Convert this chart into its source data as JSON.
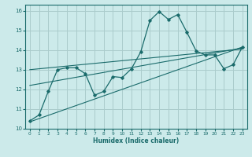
{
  "xlabel": "Humidex (Indice chaleur)",
  "background_color": "#cceaea",
  "grid_color": "#aacccc",
  "line_color": "#1a6b6b",
  "xlim": [
    -0.5,
    23.5
  ],
  "ylim": [
    10,
    16.3
  ],
  "yticks": [
    10,
    11,
    12,
    13,
    14,
    15,
    16
  ],
  "xticks": [
    0,
    1,
    2,
    3,
    4,
    5,
    6,
    7,
    8,
    9,
    10,
    11,
    12,
    13,
    14,
    15,
    16,
    17,
    18,
    19,
    20,
    21,
    22,
    23
  ],
  "main_x": [
    0,
    1,
    2,
    3,
    4,
    5,
    6,
    7,
    8,
    9,
    10,
    11,
    12,
    13,
    14,
    15,
    16,
    17,
    18,
    19,
    20,
    21,
    22,
    23
  ],
  "main_y": [
    10.4,
    10.7,
    11.9,
    13.0,
    13.1,
    13.1,
    12.8,
    11.7,
    11.9,
    12.65,
    12.6,
    13.05,
    13.9,
    15.5,
    15.95,
    15.55,
    15.8,
    14.9,
    13.95,
    13.75,
    13.75,
    13.05,
    13.25,
    14.15
  ],
  "trend1_x": [
    0,
    23
  ],
  "trend1_y": [
    10.35,
    14.15
  ],
  "trend2_x": [
    0,
    23
  ],
  "trend2_y": [
    12.2,
    14.1
  ],
  "trend3_x": [
    0,
    23
  ],
  "trend3_y": [
    13.0,
    14.05
  ]
}
